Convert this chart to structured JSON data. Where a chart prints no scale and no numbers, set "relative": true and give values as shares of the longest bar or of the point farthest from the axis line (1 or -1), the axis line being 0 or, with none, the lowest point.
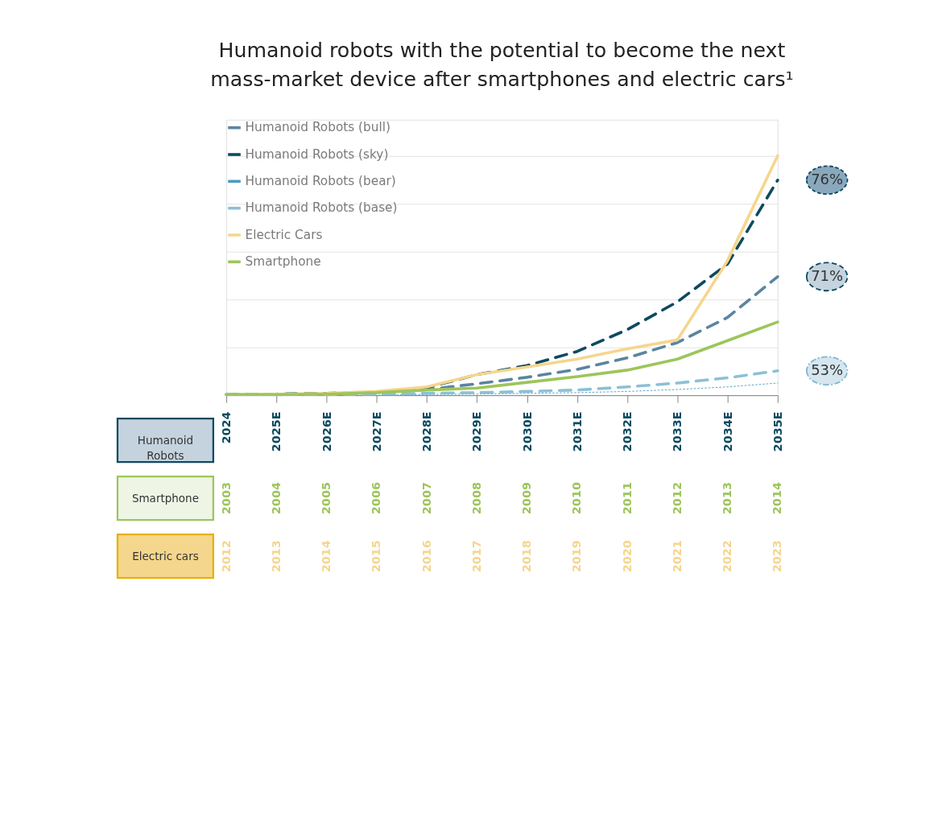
{
  "chart_data": {
    "type": "line",
    "title": "Humanoid robots with the potential to become the next mass-market device after smartphones and electric cars¹",
    "categories": [
      "2024",
      "2025E",
      "2026E",
      "2027E",
      "2028E",
      "2029E",
      "2030E",
      "2031E",
      "2032E",
      "2033E",
      "2034E",
      "2035E"
    ],
    "relative": true,
    "grid": "y",
    "legend": "top left",
    "tick_labels": "x",
    "series": [
      {
        "name": "Humanoid Robots (bull)",
        "color": "#5b84a0",
        "line_style": "dashed",
        "values": [
          0.003,
          0.005,
          0.008,
          0.011,
          0.024,
          0.048,
          0.075,
          0.108,
          0.156,
          0.22,
          0.325,
          0.495
        ]
      },
      {
        "name": "Humanoid Robots (sky)",
        "color": "#0d4a60",
        "line_style": "dashed",
        "values": [
          0.003,
          0.005,
          0.008,
          0.013,
          0.032,
          0.086,
          0.124,
          0.183,
          0.274,
          0.39,
          0.548,
          0.898
        ]
      },
      {
        "name": "Humanoid Robots (bear)",
        "color": "#4a9bc0",
        "line_style": "dotted",
        "values": [
          0.0,
          0.0,
          0.0,
          0.0,
          0.003,
          0.005,
          0.008,
          0.011,
          0.016,
          0.024,
          0.035,
          0.051
        ]
      },
      {
        "name": "Humanoid Robots (base)",
        "color": "#8cc0d6",
        "line_style": "dashed",
        "values": [
          0.003,
          0.003,
          0.003,
          0.005,
          0.008,
          0.011,
          0.016,
          0.022,
          0.035,
          0.051,
          0.073,
          0.102
        ]
      },
      {
        "name": "Electric Cars",
        "color": "#f5d68d",
        "line_style": "solid",
        "values": [
          0.003,
          0.005,
          0.008,
          0.016,
          0.035,
          0.086,
          0.118,
          0.151,
          0.194,
          0.231,
          0.562,
          1.0
        ]
      },
      {
        "name": "Smartphone",
        "color": "#9dc55a",
        "line_style": "solid",
        "values": [
          0.003,
          0.003,
          0.005,
          0.011,
          0.022,
          0.03,
          0.054,
          0.078,
          0.105,
          0.151,
          0.228,
          0.306
        ]
      }
    ],
    "annotations": [
      {
        "text": "76%",
        "x": "2035E",
        "y": 0.898
      },
      {
        "text": "71%",
        "x": "2035E",
        "y": 0.495
      },
      {
        "text": "53%",
        "x": "2035E",
        "y": 0.102
      },
      "Humanoid Robots",
      "Smartphone",
      "Electric cars",
      "2003",
      "2004",
      "2005",
      "2006",
      "2007",
      "2008",
      "2009",
      "2010",
      "2011",
      "2012",
      "2013",
      "2014",
      "2012",
      "2013",
      "2014",
      "2015",
      "2016",
      "2017",
      "2018",
      "2019",
      "2020",
      "2021",
      "2022",
      "2023"
    ]
  }
}
